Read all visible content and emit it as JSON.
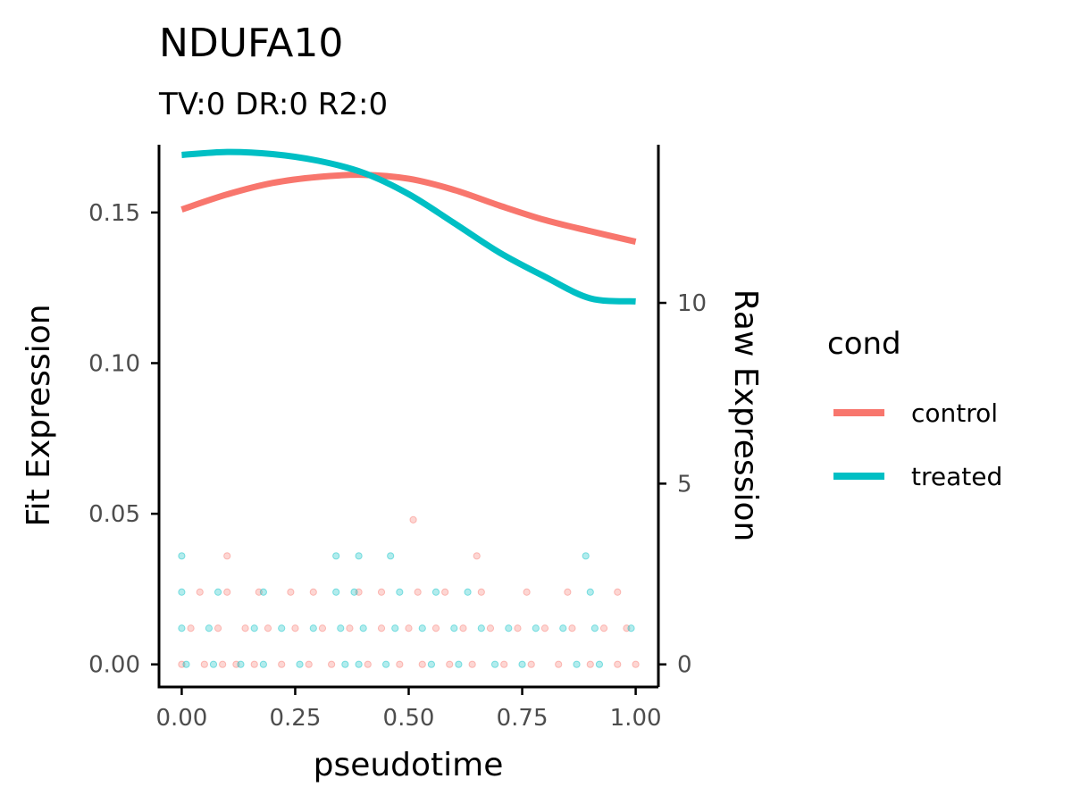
{
  "chart_data": {
    "type": "line",
    "title": "NDUFA10",
    "subtitle": "TV:0 DR:0 R2:0",
    "xlabel": "pseudotime",
    "ylabel": "Fit Expression",
    "y2label": "Raw Expression",
    "xlim": [
      -0.05,
      1.05
    ],
    "ylim": [
      -0.0075,
      0.1725
    ],
    "y2lim": [
      -0.625,
      14.375
    ],
    "x_ticks": [
      "0.00",
      "0.25",
      "0.50",
      "0.75",
      "1.00"
    ],
    "y_ticks": [
      "0.00",
      "0.05",
      "0.10",
      "0.15"
    ],
    "y2_ticks": [
      "0",
      "5",
      "10"
    ],
    "grid": false,
    "legend": {
      "title": "cond",
      "position": "right",
      "entries": [
        "control",
        "treated"
      ]
    },
    "series": [
      {
        "name": "control",
        "color": "#F8766D",
        "x": [
          0.0,
          0.1,
          0.2,
          0.3,
          0.4,
          0.5,
          0.6,
          0.7,
          0.8,
          0.9,
          1.0
        ],
        "y": [
          0.151,
          0.156,
          0.1598,
          0.1618,
          0.1625,
          0.1612,
          0.1575,
          0.1523,
          0.1475,
          0.1438,
          0.1403
        ]
      },
      {
        "name": "treated",
        "color": "#00BFC4",
        "x": [
          0.0,
          0.1,
          0.2,
          0.3,
          0.4,
          0.5,
          0.6,
          0.7,
          0.8,
          0.9,
          1.0
        ],
        "y": [
          0.1691,
          0.1701,
          0.1694,
          0.1672,
          0.1632,
          0.1561,
          0.1465,
          0.1367,
          0.1287,
          0.1215,
          0.1205
        ]
      }
    ],
    "raw_points": {
      "control": [
        {
          "x": 0.0,
          "y": 0
        },
        {
          "x": 0.05,
          "y": 0
        },
        {
          "x": 0.09,
          "y": 0
        },
        {
          "x": 0.12,
          "y": 0
        },
        {
          "x": 0.16,
          "y": 0
        },
        {
          "x": 0.22,
          "y": 0
        },
        {
          "x": 0.28,
          "y": 0
        },
        {
          "x": 0.33,
          "y": 0
        },
        {
          "x": 0.41,
          "y": 0
        },
        {
          "x": 0.48,
          "y": 0
        },
        {
          "x": 0.53,
          "y": 0
        },
        {
          "x": 0.59,
          "y": 0
        },
        {
          "x": 0.64,
          "y": 0
        },
        {
          "x": 0.71,
          "y": 0
        },
        {
          "x": 0.77,
          "y": 0
        },
        {
          "x": 0.83,
          "y": 0
        },
        {
          "x": 0.9,
          "y": 0
        },
        {
          "x": 0.96,
          "y": 0
        },
        {
          "x": 1.0,
          "y": 0
        },
        {
          "x": 0.02,
          "y": 1
        },
        {
          "x": 0.08,
          "y": 1
        },
        {
          "x": 0.14,
          "y": 1
        },
        {
          "x": 0.19,
          "y": 1
        },
        {
          "x": 0.25,
          "y": 1
        },
        {
          "x": 0.31,
          "y": 1
        },
        {
          "x": 0.37,
          "y": 1
        },
        {
          "x": 0.44,
          "y": 1
        },
        {
          "x": 0.5,
          "y": 1
        },
        {
          "x": 0.56,
          "y": 1
        },
        {
          "x": 0.62,
          "y": 1
        },
        {
          "x": 0.68,
          "y": 1
        },
        {
          "x": 0.74,
          "y": 1
        },
        {
          "x": 0.8,
          "y": 1
        },
        {
          "x": 0.86,
          "y": 1
        },
        {
          "x": 0.93,
          "y": 1
        },
        {
          "x": 0.98,
          "y": 1
        },
        {
          "x": 0.04,
          "y": 2
        },
        {
          "x": 0.1,
          "y": 2
        },
        {
          "x": 0.17,
          "y": 2
        },
        {
          "x": 0.24,
          "y": 2
        },
        {
          "x": 0.29,
          "y": 2
        },
        {
          "x": 0.39,
          "y": 2
        },
        {
          "x": 0.44,
          "y": 2
        },
        {
          "x": 0.52,
          "y": 2
        },
        {
          "x": 0.58,
          "y": 2
        },
        {
          "x": 0.66,
          "y": 2
        },
        {
          "x": 0.76,
          "y": 2
        },
        {
          "x": 0.85,
          "y": 2
        },
        {
          "x": 0.96,
          "y": 2
        },
        {
          "x": 0.1,
          "y": 3
        },
        {
          "x": 0.65,
          "y": 3
        },
        {
          "x": 0.51,
          "y": 4
        }
      ],
      "treated": [
        {
          "x": 0.01,
          "y": 0
        },
        {
          "x": 0.07,
          "y": 0
        },
        {
          "x": 0.13,
          "y": 0
        },
        {
          "x": 0.18,
          "y": 0
        },
        {
          "x": 0.26,
          "y": 0
        },
        {
          "x": 0.36,
          "y": 0
        },
        {
          "x": 0.39,
          "y": 0
        },
        {
          "x": 0.45,
          "y": 0
        },
        {
          "x": 0.55,
          "y": 0
        },
        {
          "x": 0.61,
          "y": 0
        },
        {
          "x": 0.69,
          "y": 0
        },
        {
          "x": 0.75,
          "y": 0
        },
        {
          "x": 0.87,
          "y": 0
        },
        {
          "x": 0.92,
          "y": 0
        },
        {
          "x": 0.0,
          "y": 1
        },
        {
          "x": 0.06,
          "y": 1
        },
        {
          "x": 0.16,
          "y": 1
        },
        {
          "x": 0.22,
          "y": 1
        },
        {
          "x": 0.29,
          "y": 1
        },
        {
          "x": 0.35,
          "y": 1
        },
        {
          "x": 0.4,
          "y": 1
        },
        {
          "x": 0.47,
          "y": 1
        },
        {
          "x": 0.53,
          "y": 1
        },
        {
          "x": 0.6,
          "y": 1
        },
        {
          "x": 0.66,
          "y": 1
        },
        {
          "x": 0.72,
          "y": 1
        },
        {
          "x": 0.78,
          "y": 1
        },
        {
          "x": 0.84,
          "y": 1
        },
        {
          "x": 0.91,
          "y": 1
        },
        {
          "x": 0.99,
          "y": 1
        },
        {
          "x": 0.0,
          "y": 2
        },
        {
          "x": 0.08,
          "y": 2
        },
        {
          "x": 0.18,
          "y": 2
        },
        {
          "x": 0.34,
          "y": 2
        },
        {
          "x": 0.38,
          "y": 2
        },
        {
          "x": 0.48,
          "y": 2
        },
        {
          "x": 0.56,
          "y": 2
        },
        {
          "x": 0.63,
          "y": 2
        },
        {
          "x": 0.9,
          "y": 2
        },
        {
          "x": 0.0,
          "y": 3
        },
        {
          "x": 0.34,
          "y": 3
        },
        {
          "x": 0.39,
          "y": 3
        },
        {
          "x": 0.46,
          "y": 3
        },
        {
          "x": 0.89,
          "y": 3
        }
      ]
    }
  }
}
